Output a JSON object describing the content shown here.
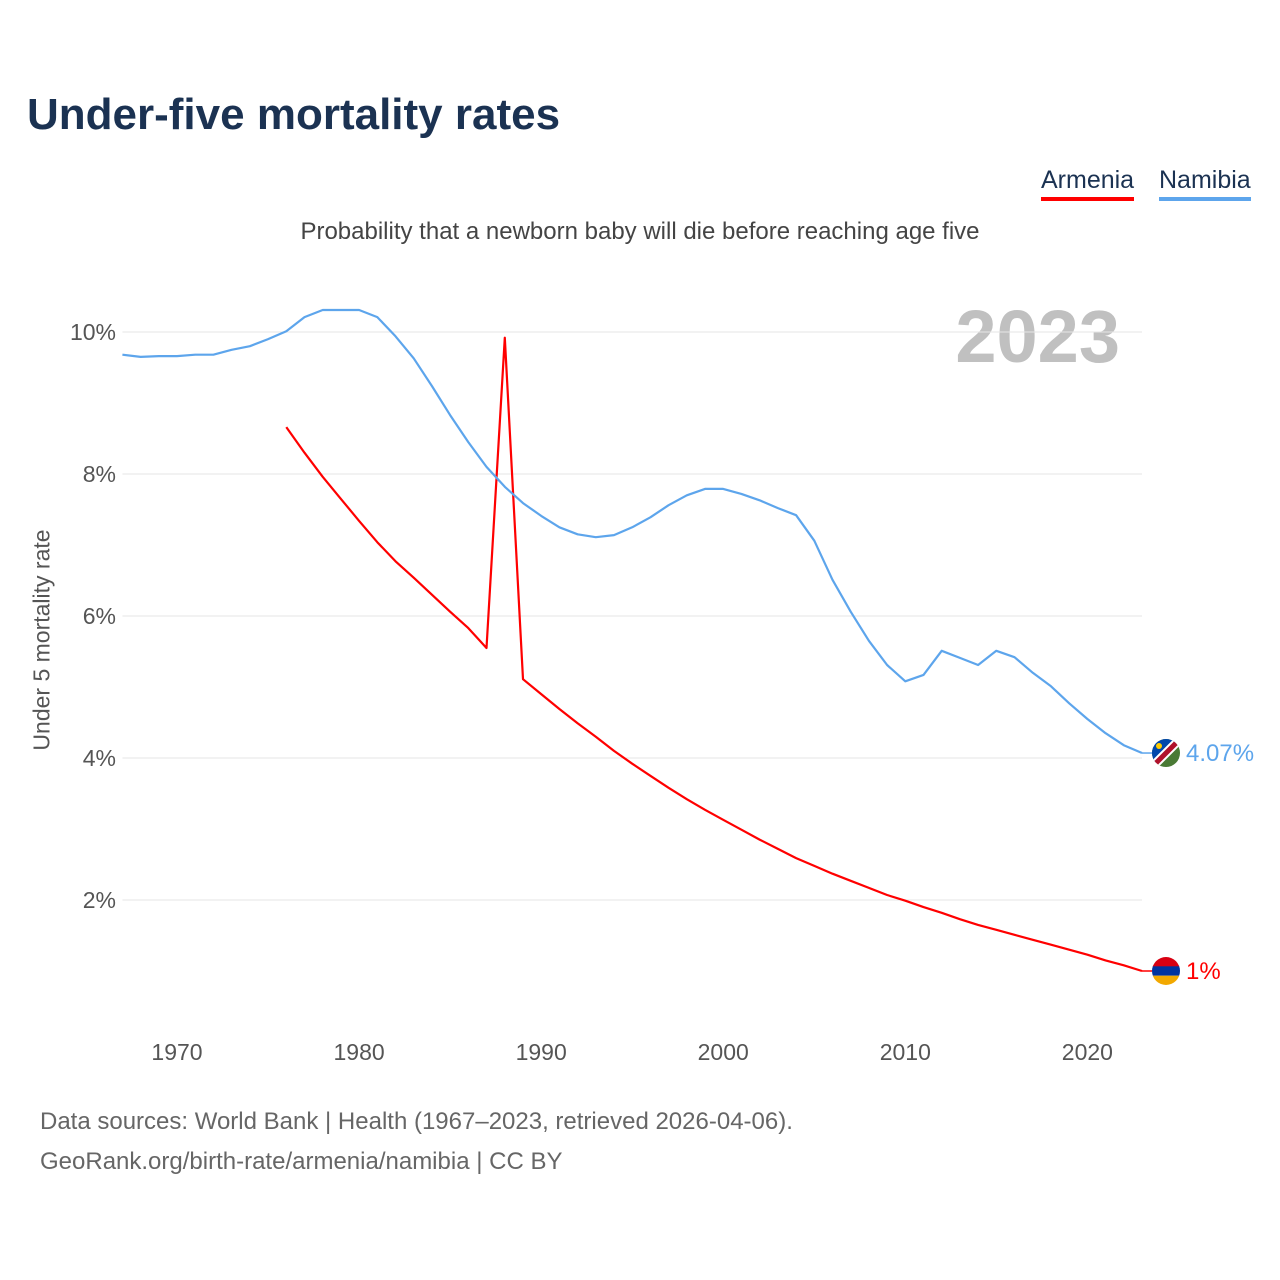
{
  "title": "Under-five mortality rates",
  "subtitle": "Probability that a newborn baby will die before reaching age five",
  "legend": [
    {
      "name": "Armenia",
      "color": "#ff0000"
    },
    {
      "name": "Namibia",
      "color": "#5da5ec"
    }
  ],
  "year_label": "2023",
  "footer": {
    "line1": "Data sources: World Bank | Health (1967–2023, retrieved 2026-04-06).",
    "line2": "GeoRank.org/birth-rate/armenia/namibia | CC BY"
  },
  "chart_data": {
    "type": "line",
    "title": "Under-five mortality rates",
    "subtitle": "Probability that a newborn baby will die before reaching age five",
    "xlabel": "",
    "ylabel": "Under 5 mortality rate",
    "xlim": [
      1967,
      2023
    ],
    "ylim": [
      0,
      10.5
    ],
    "x_ticks": [
      1970,
      1980,
      1990,
      2000,
      2010,
      2020
    ],
    "x_tick_labels": [
      "1970",
      "1980",
      "1990",
      "2000",
      "2010",
      "2020"
    ],
    "y_ticks": [
      2,
      4,
      6,
      8,
      10
    ],
    "y_tick_labels": [
      "2%",
      "4%",
      "6%",
      "8%",
      "10%"
    ],
    "grid": true,
    "legend_position": "top-right",
    "series": [
      {
        "name": "Armenia",
        "color": "#ff0000",
        "end_label": "1%",
        "start_year": 1976,
        "values": [
          8.66,
          8.3,
          7.96,
          7.65,
          7.34,
          7.04,
          6.77,
          6.54,
          6.3,
          6.06,
          5.83,
          5.55,
          9.92,
          5.11,
          4.9,
          4.69,
          4.49,
          4.3,
          4.1,
          3.92,
          3.75,
          3.58,
          3.42,
          3.27,
          3.13,
          2.99,
          2.85,
          2.72,
          2.59,
          2.48,
          2.37,
          2.27,
          2.17,
          2.07,
          1.99,
          1.9,
          1.82,
          1.73,
          1.65,
          1.58,
          1.51,
          1.44,
          1.37,
          1.3,
          1.23,
          1.15,
          1.08,
          1.0
        ]
      },
      {
        "name": "Namibia",
        "color": "#5da5ec",
        "end_label": "4.07%",
        "start_year": 1967,
        "values": [
          9.68,
          9.65,
          9.66,
          9.66,
          9.68,
          9.68,
          9.75,
          9.8,
          9.9,
          10.01,
          10.21,
          10.31,
          10.31,
          10.31,
          10.21,
          9.94,
          9.63,
          9.24,
          8.83,
          8.45,
          8.1,
          7.82,
          7.59,
          7.41,
          7.25,
          7.15,
          7.11,
          7.14,
          7.25,
          7.39,
          7.56,
          7.7,
          7.79,
          7.79,
          7.72,
          7.63,
          7.52,
          7.42,
          7.06,
          6.51,
          6.06,
          5.65,
          5.31,
          5.08,
          5.17,
          5.51,
          5.41,
          5.31,
          5.51,
          5.42,
          5.2,
          5.01,
          4.77,
          4.55,
          4.35,
          4.18,
          4.07
        ]
      }
    ]
  }
}
